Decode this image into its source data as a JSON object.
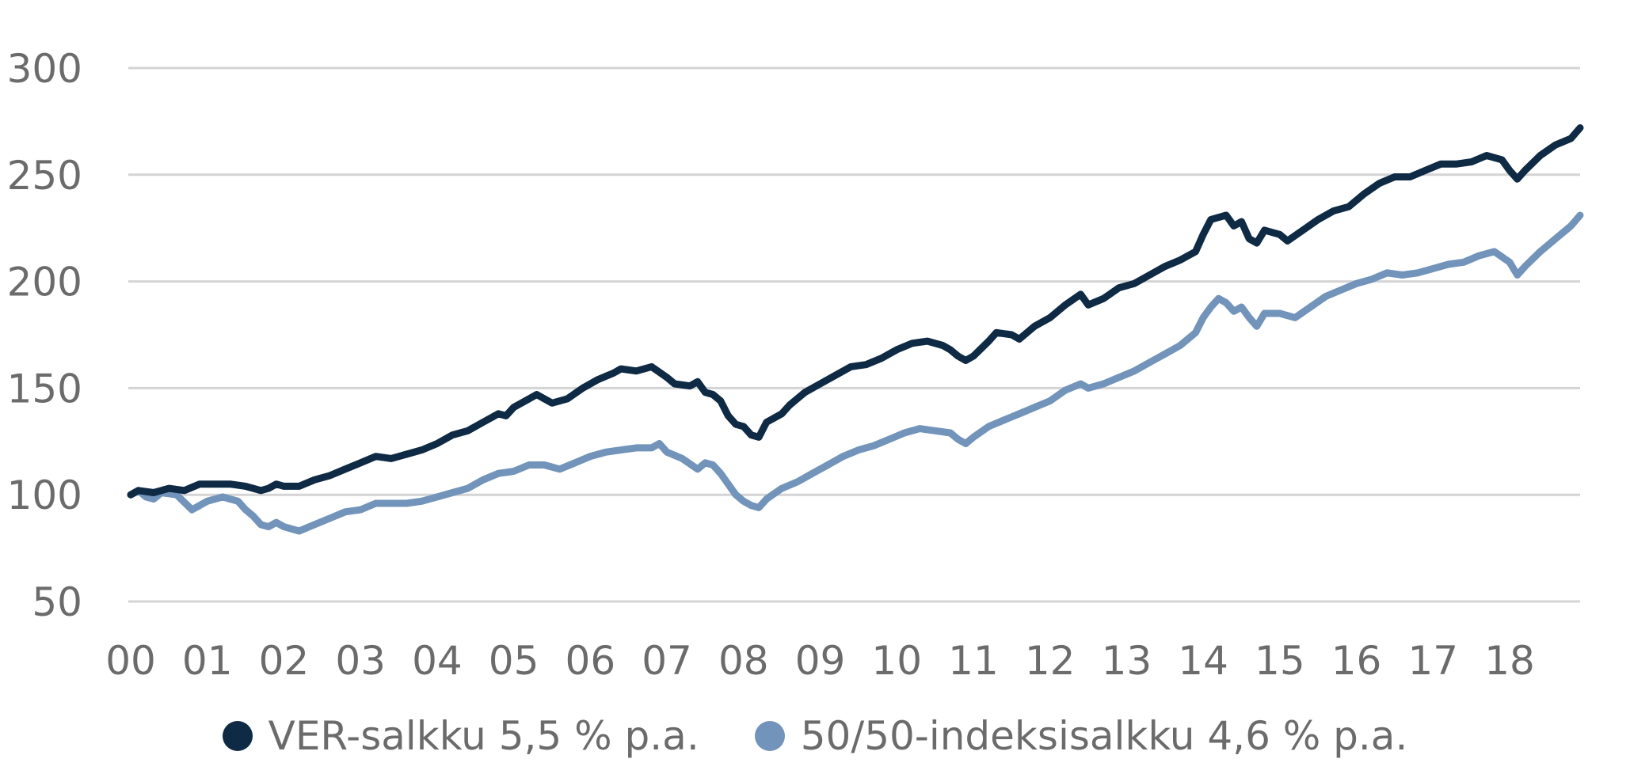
{
  "chart_data": {
    "type": "line",
    "title": "",
    "xlabel": "",
    "ylabel": "",
    "ylim": [
      50,
      300
    ],
    "yticks": [
      50,
      100,
      150,
      200,
      250,
      300
    ],
    "xlim": [
      0,
      18.92
    ],
    "xticks": [
      {
        "v": 0,
        "label": "00"
      },
      {
        "v": 1,
        "label": "01"
      },
      {
        "v": 2,
        "label": "02"
      },
      {
        "v": 3,
        "label": "03"
      },
      {
        "v": 4,
        "label": "04"
      },
      {
        "v": 5,
        "label": "05"
      },
      {
        "v": 6,
        "label": "06"
      },
      {
        "v": 7,
        "label": "07"
      },
      {
        "v": 8,
        "label": "08"
      },
      {
        "v": 9,
        "label": "09"
      },
      {
        "v": 10,
        "label": "10"
      },
      {
        "v": 11,
        "label": "11"
      },
      {
        "v": 12,
        "label": "12"
      },
      {
        "v": 13,
        "label": "13"
      },
      {
        "v": 14,
        "label": "14"
      },
      {
        "v": 15,
        "label": "15"
      },
      {
        "v": 16,
        "label": "16"
      },
      {
        "v": 17,
        "label": "17"
      },
      {
        "v": 18,
        "label": "18"
      }
    ],
    "grid": true,
    "legend_position": "bottom",
    "series": [
      {
        "name": "VER-salkku 5,5 % p.a.",
        "color": "#0f2a44",
        "points": [
          [
            0.0,
            100
          ],
          [
            0.1,
            102
          ],
          [
            0.3,
            101
          ],
          [
            0.5,
            103
          ],
          [
            0.7,
            102
          ],
          [
            0.9,
            105
          ],
          [
            1.1,
            105
          ],
          [
            1.3,
            105
          ],
          [
            1.5,
            104
          ],
          [
            1.7,
            102
          ],
          [
            1.8,
            103
          ],
          [
            1.9,
            105
          ],
          [
            2.0,
            104
          ],
          [
            2.2,
            104
          ],
          [
            2.4,
            107
          ],
          [
            2.6,
            109
          ],
          [
            2.8,
            112
          ],
          [
            3.0,
            115
          ],
          [
            3.2,
            118
          ],
          [
            3.4,
            117
          ],
          [
            3.6,
            119
          ],
          [
            3.8,
            121
          ],
          [
            4.0,
            124
          ],
          [
            4.2,
            128
          ],
          [
            4.4,
            130
          ],
          [
            4.6,
            134
          ],
          [
            4.8,
            138
          ],
          [
            4.9,
            137
          ],
          [
            5.0,
            141
          ],
          [
            5.2,
            145
          ],
          [
            5.3,
            147
          ],
          [
            5.4,
            145
          ],
          [
            5.5,
            143
          ],
          [
            5.7,
            145
          ],
          [
            5.9,
            150
          ],
          [
            6.1,
            154
          ],
          [
            6.3,
            157
          ],
          [
            6.4,
            159
          ],
          [
            6.6,
            158
          ],
          [
            6.8,
            160
          ],
          [
            7.0,
            155
          ],
          [
            7.1,
            152
          ],
          [
            7.3,
            151
          ],
          [
            7.4,
            153
          ],
          [
            7.5,
            148
          ],
          [
            7.6,
            147
          ],
          [
            7.7,
            144
          ],
          [
            7.8,
            137
          ],
          [
            7.9,
            133
          ],
          [
            8.0,
            132
          ],
          [
            8.1,
            128
          ],
          [
            8.2,
            127
          ],
          [
            8.3,
            134
          ],
          [
            8.5,
            138
          ],
          [
            8.6,
            142
          ],
          [
            8.8,
            148
          ],
          [
            9.0,
            152
          ],
          [
            9.2,
            156
          ],
          [
            9.4,
            160
          ],
          [
            9.6,
            161
          ],
          [
            9.8,
            164
          ],
          [
            10.0,
            168
          ],
          [
            10.2,
            171
          ],
          [
            10.4,
            172
          ],
          [
            10.6,
            170
          ],
          [
            10.7,
            168
          ],
          [
            10.8,
            165
          ],
          [
            10.9,
            163
          ],
          [
            11.0,
            165
          ],
          [
            11.2,
            172
          ],
          [
            11.3,
            176
          ],
          [
            11.5,
            175
          ],
          [
            11.6,
            173
          ],
          [
            11.8,
            179
          ],
          [
            12.0,
            183
          ],
          [
            12.2,
            189
          ],
          [
            12.4,
            194
          ],
          [
            12.5,
            189
          ],
          [
            12.7,
            192
          ],
          [
            12.9,
            197
          ],
          [
            13.1,
            199
          ],
          [
            13.3,
            203
          ],
          [
            13.5,
            207
          ],
          [
            13.7,
            210
          ],
          [
            13.9,
            214
          ],
          [
            14.0,
            222
          ],
          [
            14.1,
            229
          ],
          [
            14.2,
            230
          ],
          [
            14.3,
            231
          ],
          [
            14.4,
            226
          ],
          [
            14.5,
            228
          ],
          [
            14.6,
            220
          ],
          [
            14.7,
            218
          ],
          [
            14.8,
            224
          ],
          [
            15.0,
            222
          ],
          [
            15.1,
            219
          ],
          [
            15.3,
            224
          ],
          [
            15.5,
            229
          ],
          [
            15.7,
            233
          ],
          [
            15.9,
            235
          ],
          [
            16.1,
            241
          ],
          [
            16.3,
            246
          ],
          [
            16.5,
            249
          ],
          [
            16.7,
            249
          ],
          [
            16.9,
            252
          ],
          [
            17.1,
            255
          ],
          [
            17.3,
            255
          ],
          [
            17.5,
            256
          ],
          [
            17.7,
            259
          ],
          [
            17.9,
            257
          ],
          [
            18.0,
            252
          ],
          [
            18.1,
            248
          ],
          [
            18.2,
            252
          ],
          [
            18.4,
            259
          ],
          [
            18.6,
            264
          ],
          [
            18.8,
            267
          ],
          [
            18.92,
            272
          ]
        ]
      },
      {
        "name": "50/50-indeksisalkku 4,6 % p.a.",
        "color": "#7294bb",
        "points": [
          [
            0.0,
            100
          ],
          [
            0.1,
            102
          ],
          [
            0.2,
            99
          ],
          [
            0.3,
            98
          ],
          [
            0.4,
            101
          ],
          [
            0.6,
            100
          ],
          [
            0.8,
            93
          ],
          [
            1.0,
            97
          ],
          [
            1.2,
            99
          ],
          [
            1.4,
            97
          ],
          [
            1.5,
            93
          ],
          [
            1.6,
            90
          ],
          [
            1.7,
            86
          ],
          [
            1.8,
            85
          ],
          [
            1.9,
            87
          ],
          [
            2.0,
            85
          ],
          [
            2.2,
            83
          ],
          [
            2.4,
            86
          ],
          [
            2.6,
            89
          ],
          [
            2.8,
            92
          ],
          [
            3.0,
            93
          ],
          [
            3.2,
            96
          ],
          [
            3.4,
            96
          ],
          [
            3.6,
            96
          ],
          [
            3.8,
            97
          ],
          [
            4.0,
            99
          ],
          [
            4.2,
            101
          ],
          [
            4.4,
            103
          ],
          [
            4.6,
            107
          ],
          [
            4.8,
            110
          ],
          [
            5.0,
            111
          ],
          [
            5.2,
            114
          ],
          [
            5.4,
            114
          ],
          [
            5.6,
            112
          ],
          [
            5.8,
            115
          ],
          [
            6.0,
            118
          ],
          [
            6.2,
            120
          ],
          [
            6.4,
            121
          ],
          [
            6.6,
            122
          ],
          [
            6.8,
            122
          ],
          [
            6.9,
            124
          ],
          [
            7.0,
            120
          ],
          [
            7.2,
            117
          ],
          [
            7.4,
            112
          ],
          [
            7.5,
            115
          ],
          [
            7.6,
            114
          ],
          [
            7.7,
            110
          ],
          [
            7.8,
            105
          ],
          [
            7.9,
            100
          ],
          [
            8.0,
            97
          ],
          [
            8.1,
            95
          ],
          [
            8.2,
            94
          ],
          [
            8.3,
            98
          ],
          [
            8.5,
            103
          ],
          [
            8.7,
            106
          ],
          [
            8.9,
            110
          ],
          [
            9.1,
            114
          ],
          [
            9.3,
            118
          ],
          [
            9.5,
            121
          ],
          [
            9.7,
            123
          ],
          [
            9.9,
            126
          ],
          [
            10.1,
            129
          ],
          [
            10.3,
            131
          ],
          [
            10.5,
            130
          ],
          [
            10.7,
            129
          ],
          [
            10.8,
            126
          ],
          [
            10.9,
            124
          ],
          [
            11.0,
            127
          ],
          [
            11.2,
            132
          ],
          [
            11.4,
            135
          ],
          [
            11.6,
            138
          ],
          [
            11.8,
            141
          ],
          [
            12.0,
            144
          ],
          [
            12.2,
            149
          ],
          [
            12.4,
            152
          ],
          [
            12.5,
            150
          ],
          [
            12.7,
            152
          ],
          [
            12.9,
            155
          ],
          [
            13.1,
            158
          ],
          [
            13.3,
            162
          ],
          [
            13.5,
            166
          ],
          [
            13.7,
            170
          ],
          [
            13.9,
            176
          ],
          [
            14.0,
            183
          ],
          [
            14.1,
            188
          ],
          [
            14.2,
            192
          ],
          [
            14.3,
            190
          ],
          [
            14.4,
            186
          ],
          [
            14.5,
            188
          ],
          [
            14.6,
            183
          ],
          [
            14.7,
            179
          ],
          [
            14.8,
            185
          ],
          [
            15.0,
            185
          ],
          [
            15.2,
            183
          ],
          [
            15.4,
            188
          ],
          [
            15.6,
            193
          ],
          [
            15.8,
            196
          ],
          [
            16.0,
            199
          ],
          [
            16.2,
            201
          ],
          [
            16.4,
            204
          ],
          [
            16.6,
            203
          ],
          [
            16.8,
            204
          ],
          [
            17.0,
            206
          ],
          [
            17.2,
            208
          ],
          [
            17.4,
            209
          ],
          [
            17.6,
            212
          ],
          [
            17.8,
            214
          ],
          [
            18.0,
            209
          ],
          [
            18.1,
            203
          ],
          [
            18.2,
            207
          ],
          [
            18.4,
            214
          ],
          [
            18.6,
            220
          ],
          [
            18.8,
            226
          ],
          [
            18.92,
            231
          ]
        ]
      }
    ]
  }
}
